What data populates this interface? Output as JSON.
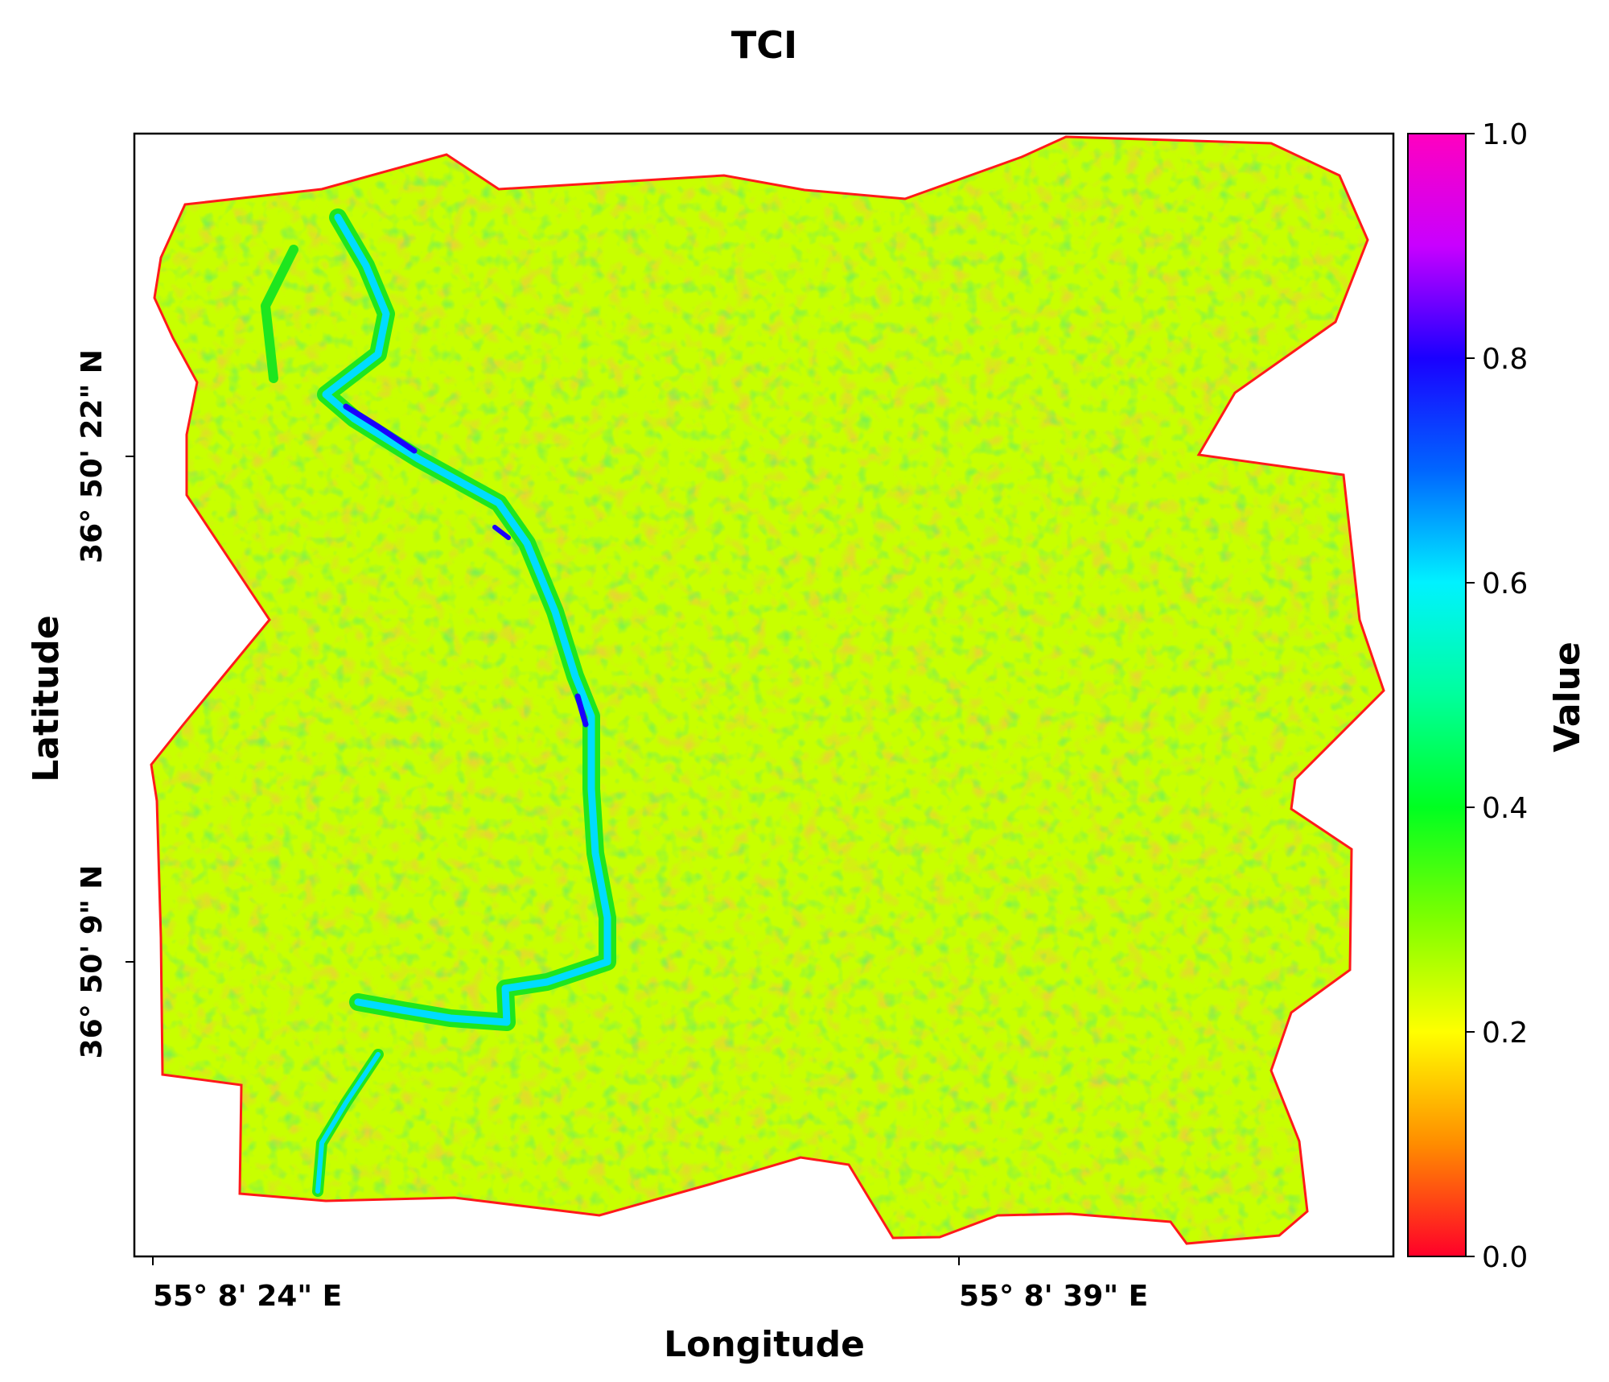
{
  "title": "TCI",
  "xlabel": "Longitude",
  "ylabel": "Latitude",
  "x_ticks": [
    "55° 8' 24\" E",
    "55° 8' 39\" E"
  ],
  "y_ticks": [
    "36° 50' 22\" N",
    "36° 50' 9\" N"
  ],
  "colorbar": {
    "label": "Value",
    "ticks": [
      "0.0",
      "0.2",
      "0.4",
      "0.6",
      "0.8",
      "1.0"
    ],
    "range": [
      0.0,
      1.0
    ],
    "colormap": "gist_rainbow",
    "stops": [
      "#ff0029",
      "#ff8c00",
      "#ffff00",
      "#7fff00",
      "#00ff21",
      "#00ff9c",
      "#00f2ff",
      "#0066ff",
      "#1a00ff",
      "#c800ff",
      "#ff00bf"
    ]
  },
  "map": {
    "dominant_colors": [
      "#c8ff00",
      "#1ee61e",
      "#ff7a1a",
      "#ffe000"
    ],
    "stream_color": "#00dcff",
    "stream_peak_color": "#1a00ff"
  }
}
